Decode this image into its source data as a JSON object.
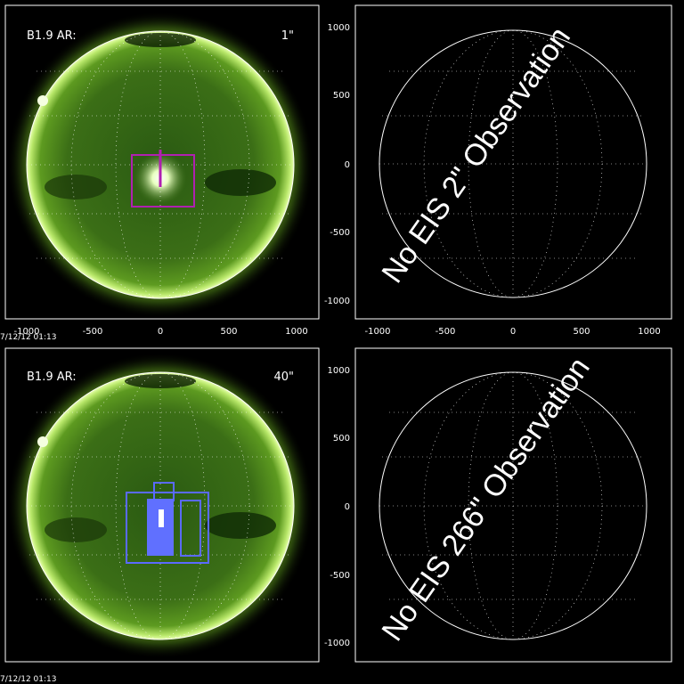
{
  "panels": [
    {
      "id": "top-left",
      "label": "B1.9  AR:",
      "instrument_tag": "1\"",
      "tag_color": "#c000c0",
      "timestamp": "7/12/12 01:13",
      "x_ticks": [
        "-1000",
        "-500",
        "0",
        "500",
        "1000"
      ],
      "y_ticks": []
    },
    {
      "id": "top-right",
      "message": "No EIS 2\" Observation",
      "x_ticks": [
        "-1000",
        "-500",
        "0",
        "500",
        "1000"
      ],
      "y_ticks": [
        "1000",
        "500",
        "0",
        "-500",
        "-1000"
      ]
    },
    {
      "id": "bottom-left",
      "label": "B1.9  AR:",
      "instrument_tag": "40\"",
      "tag_color": "#6f6fff",
      "timestamp": "7/12/12 01:13",
      "x_ticks": [],
      "y_ticks": []
    },
    {
      "id": "bottom-right",
      "message": "No EIS 266\" Observation",
      "x_ticks": [],
      "y_ticks": [
        "1000",
        "500",
        "0",
        "-500",
        "-1000"
      ]
    }
  ],
  "colors": {
    "sun_core": "#2f5a10",
    "sun_limb": "#c8f060",
    "magenta_box": "#b020b0",
    "blue_box": "#5a6aff"
  }
}
